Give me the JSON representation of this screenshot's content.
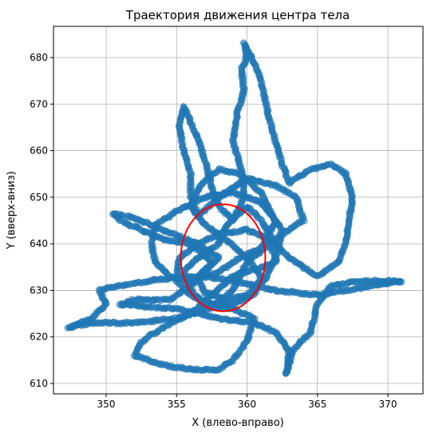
{
  "chart_data": {
    "type": "scatter",
    "title": "Траектория движения центра тела",
    "xlabel": "X (влево-вправо)",
    "ylabel": "Y (вверх-вниз)",
    "xlim": [
      46.4,
      372.0
    ],
    "ylim": [
      607.7,
      686.8
    ],
    "xticks": [
      350,
      355,
      360,
      365,
      370
    ],
    "yticks": [
      610,
      620,
      630,
      640,
      650,
      660,
      670,
      680
    ],
    "grid": true,
    "colors": {
      "points": "#1f77b4",
      "circle": "#ff0000",
      "grid": "#b0b0b0"
    },
    "circle": {
      "center": [
        358.3,
        637.0
      ],
      "radius_x": 3.0,
      "radius_y": 11.5
    },
    "points_summary": {
      "x_range": [
        347.3,
        371.1
      ],
      "y_range": [
        611.0,
        683.0
      ]
    }
  }
}
